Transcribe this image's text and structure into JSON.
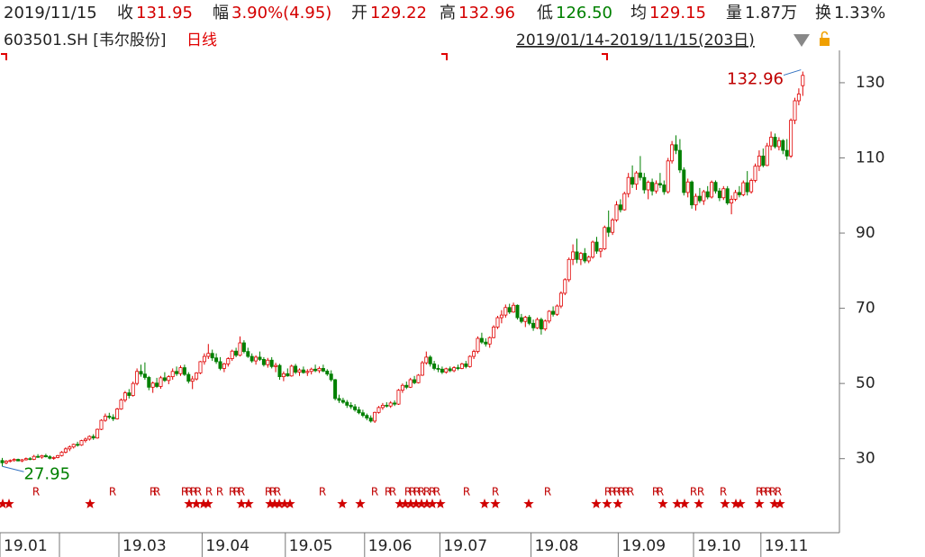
{
  "header": {
    "date": "2019/11/15",
    "items": [
      {
        "label": "收",
        "value": "131.95",
        "color": "#d40000"
      },
      {
        "label": "幅",
        "value": "3.90%(4.95)",
        "color": "#d40000"
      },
      {
        "label": "开",
        "value": "129.22",
        "color": "#d40000"
      },
      {
        "label": "高",
        "value": "132.96",
        "color": "#d40000"
      },
      {
        "label": "低",
        "value": "126.50",
        "color": "#008000"
      },
      {
        "label": "均",
        "value": "129.15",
        "color": "#d40000"
      },
      {
        "label": "量",
        "value": "1.87万",
        "color": "#222222"
      },
      {
        "label": "换",
        "value": "1.33%",
        "color": "#222222"
      }
    ]
  },
  "chart_data": {
    "type": "candlestick",
    "code": "603501.SH [韦尔股份]",
    "period": "日线",
    "range": "2019/01/14-2019/11/15(203日)",
    "up_color": "#e00000",
    "down_color": "#008000",
    "ylim": [
      10.3,
      138.6
    ],
    "yticks": [
      30,
      50,
      70,
      90,
      110,
      130
    ],
    "month_starts": [
      0,
      15,
      30,
      51,
      72,
      92,
      111,
      134,
      156,
      175,
      192
    ],
    "month_labels": [
      "19.01",
      null,
      "19.03",
      "19.04",
      "19.05",
      "19.06",
      "19.07",
      "19.08",
      "19.09",
      "19.10",
      "19.11"
    ],
    "max_label": "132.96",
    "min_label": "27.95",
    "event_label": "R",
    "candles": [
      [
        29.5,
        30.2,
        27.95,
        28.9
      ],
      [
        28.9,
        29.6,
        28.5,
        29.3
      ],
      [
        29.3,
        29.8,
        29.0,
        29.5
      ],
      [
        29.5,
        30.1,
        29.2,
        29.8
      ],
      [
        29.8,
        30.0,
        29.3,
        29.4
      ],
      [
        29.4,
        29.9,
        29.1,
        29.7
      ],
      [
        29.7,
        30.3,
        29.5,
        30.0
      ],
      [
        30.0,
        30.4,
        29.6,
        29.8
      ],
      [
        29.8,
        31.0,
        29.6,
        30.6
      ],
      [
        30.6,
        31.2,
        30.2,
        30.4
      ],
      [
        30.4,
        31.0,
        30.0,
        30.8
      ],
      [
        30.8,
        31.3,
        30.3,
        30.5
      ],
      [
        30.5,
        30.9,
        29.8,
        30.1
      ],
      [
        30.1,
        30.6,
        29.7,
        30.3
      ],
      [
        30.3,
        31.0,
        30.1,
        30.8
      ],
      [
        30.8,
        32.0,
        30.6,
        31.7
      ],
      [
        31.7,
        33.0,
        31.4,
        32.6
      ],
      [
        32.6,
        33.5,
        32.0,
        33.1
      ],
      [
        33.1,
        34.0,
        32.7,
        33.8
      ],
      [
        33.8,
        34.5,
        33.2,
        33.6
      ],
      [
        33.6,
        35.0,
        33.4,
        34.8
      ],
      [
        34.8,
        35.6,
        34.3,
        35.2
      ],
      [
        35.2,
        36.2,
        34.8,
        35.9
      ],
      [
        35.9,
        36.5,
        35.0,
        35.5
      ],
      [
        35.5,
        38.0,
        35.3,
        37.8
      ],
      [
        37.8,
        40.5,
        37.6,
        40.2
      ],
      [
        40.2,
        42.0,
        39.8,
        41.3
      ],
      [
        41.3,
        42.2,
        40.5,
        41.0
      ],
      [
        41.0,
        41.8,
        40.0,
        40.6
      ],
      [
        40.6,
        43.5,
        40.4,
        43.2
      ],
      [
        43.2,
        46.0,
        43.0,
        45.6
      ],
      [
        45.6,
        48.0,
        45.0,
        47.5
      ],
      [
        47.5,
        48.5,
        46.0,
        46.8
      ],
      [
        46.8,
        50.5,
        46.5,
        50.0
      ],
      [
        50.0,
        54.0,
        49.5,
        53.2
      ],
      [
        53.2,
        55.0,
        51.8,
        52.5
      ],
      [
        52.5,
        55.6,
        51.0,
        51.6
      ],
      [
        51.6,
        52.0,
        48.2,
        49.0
      ],
      [
        49.0,
        50.5,
        47.5,
        50.1
      ],
      [
        50.1,
        51.5,
        48.8,
        49.2
      ],
      [
        49.2,
        52.0,
        48.6,
        51.5
      ],
      [
        51.5,
        53.0,
        50.4,
        50.8
      ],
      [
        50.8,
        52.2,
        49.8,
        51.8
      ],
      [
        51.8,
        54.0,
        51.0,
        53.2
      ],
      [
        53.2,
        54.5,
        52.0,
        52.6
      ],
      [
        52.6,
        54.8,
        52.0,
        54.2
      ],
      [
        54.2,
        55.0,
        52.0,
        52.4
      ],
      [
        52.4,
        53.0,
        50.0,
        50.6
      ],
      [
        50.6,
        52.0,
        48.5,
        51.2
      ],
      [
        51.2,
        53.0,
        50.8,
        52.8
      ],
      [
        52.8,
        56.0,
        52.5,
        55.8
      ],
      [
        55.8,
        58.0,
        55.0,
        57.2
      ],
      [
        57.2,
        60.5,
        56.5,
        58.0
      ],
      [
        58.0,
        59.0,
        56.0,
        56.8
      ],
      [
        56.8,
        58.0,
        55.2,
        55.8
      ],
      [
        55.8,
        57.0,
        53.5,
        54.0
      ],
      [
        54.0,
        55.5,
        53.0,
        55.2
      ],
      [
        55.2,
        57.0,
        54.5,
        56.6
      ],
      [
        56.6,
        59.0,
        56.0,
        58.6
      ],
      [
        58.6,
        59.5,
        57.0,
        57.5
      ],
      [
        57.5,
        62.5,
        57.2,
        60.8
      ],
      [
        60.8,
        61.5,
        58.0,
        58.5
      ],
      [
        58.5,
        59.5,
        56.8,
        57.2
      ],
      [
        57.2,
        58.0,
        55.5,
        56.0
      ],
      [
        56.0,
        57.5,
        55.0,
        57.0
      ],
      [
        57.0,
        58.5,
        56.0,
        56.4
      ],
      [
        56.4,
        57.0,
        54.5,
        55.0
      ],
      [
        55.0,
        56.8,
        54.2,
        56.2
      ],
      [
        56.2,
        57.0,
        54.0,
        54.5
      ],
      [
        54.5,
        55.5,
        53.0,
        54.8
      ],
      [
        54.8,
        55.2,
        51.0,
        51.8
      ],
      [
        51.8,
        53.2,
        50.6,
        52.6
      ],
      [
        52.6,
        54.0,
        51.8,
        52.0
      ],
      [
        52.0,
        55.0,
        51.8,
        54.6
      ],
      [
        54.6,
        55.2,
        52.5,
        53.0
      ],
      [
        53.0,
        54.0,
        52.0,
        53.6
      ],
      [
        53.6,
        54.5,
        52.6,
        52.9
      ],
      [
        52.9,
        53.8,
        52.0,
        53.2
      ],
      [
        53.2,
        54.2,
        52.4,
        53.8
      ],
      [
        53.8,
        55.0,
        53.0,
        53.4
      ],
      [
        53.4,
        54.5,
        52.8,
        54.0
      ],
      [
        54.0,
        55.0,
        53.0,
        53.3
      ],
      [
        53.3,
        53.8,
        52.0,
        52.5
      ],
      [
        52.5,
        53.5,
        50.5,
        51.0
      ],
      [
        51.0,
        51.2,
        45.5,
        46.0
      ],
      [
        46.0,
        47.0,
        44.8,
        45.5
      ],
      [
        45.5,
        46.2,
        44.6,
        45.0
      ],
      [
        45.0,
        45.6,
        43.5,
        44.2
      ],
      [
        44.2,
        45.0,
        43.2,
        43.8
      ],
      [
        43.8,
        44.5,
        42.5,
        43.0
      ],
      [
        43.0,
        43.8,
        41.8,
        42.2
      ],
      [
        42.2,
        43.0,
        41.0,
        41.5
      ],
      [
        41.5,
        42.0,
        40.2,
        40.8
      ],
      [
        40.8,
        41.5,
        39.6,
        40.0
      ],
      [
        40.0,
        42.5,
        39.5,
        42.3
      ],
      [
        42.3,
        44.0,
        42.0,
        43.6
      ],
      [
        43.6,
        44.8,
        43.0,
        44.2
      ],
      [
        44.2,
        45.0,
        43.6,
        44.0
      ],
      [
        44.0,
        45.3,
        43.5,
        44.8
      ],
      [
        44.8,
        45.5,
        44.0,
        44.5
      ],
      [
        44.5,
        48.5,
        44.3,
        48.2
      ],
      [
        48.2,
        50.0,
        47.5,
        49.5
      ],
      [
        49.5,
        50.5,
        48.5,
        49.0
      ],
      [
        49.0,
        51.5,
        48.8,
        51.0
      ],
      [
        51.0,
        52.0,
        49.8,
        50.2
      ],
      [
        50.2,
        52.5,
        50.0,
        52.2
      ],
      [
        52.2,
        56.0,
        52.0,
        55.5
      ],
      [
        55.5,
        58.5,
        55.0,
        57.0
      ],
      [
        57.0,
        57.5,
        54.5,
        55.2
      ],
      [
        55.2,
        56.0,
        53.5,
        54.0
      ],
      [
        54.0,
        55.0,
        53.0,
        53.8
      ],
      [
        53.8,
        54.5,
        52.5,
        53.0
      ],
      [
        53.0,
        54.2,
        52.6,
        53.9
      ],
      [
        53.9,
        54.5,
        53.0,
        53.4
      ],
      [
        53.4,
        54.6,
        53.0,
        54.2
      ],
      [
        54.2,
        55.0,
        53.5,
        54.0
      ],
      [
        54.0,
        55.5,
        53.8,
        55.2
      ],
      [
        55.2,
        56.0,
        54.0,
        54.5
      ],
      [
        54.5,
        57.5,
        54.2,
        57.2
      ],
      [
        57.2,
        59.0,
        56.5,
        58.5
      ],
      [
        58.5,
        62.5,
        58.0,
        62.0
      ],
      [
        62.0,
        63.5,
        60.5,
        61.0
      ],
      [
        61.0,
        62.0,
        59.8,
        60.5
      ],
      [
        60.5,
        62.5,
        59.5,
        62.2
      ],
      [
        62.2,
        65.5,
        62.0,
        65.0
      ],
      [
        65.0,
        68.0,
        64.5,
        67.5
      ],
      [
        67.5,
        69.5,
        66.0,
        68.2
      ],
      [
        68.2,
        71.0,
        67.5,
        70.2
      ],
      [
        70.2,
        71.2,
        68.5,
        69.0
      ],
      [
        69.0,
        71.5,
        68.8,
        70.8
      ],
      [
        70.8,
        71.0,
        67.0,
        67.5
      ],
      [
        67.5,
        68.5,
        66.0,
        66.5
      ],
      [
        66.5,
        68.0,
        65.0,
        67.6
      ],
      [
        67.6,
        68.2,
        65.5,
        66.0
      ],
      [
        66.0,
        67.0,
        64.0,
        64.8
      ],
      [
        64.8,
        67.5,
        64.5,
        67.0
      ],
      [
        67.0,
        67.5,
        63.0,
        64.5
      ],
      [
        64.5,
        67.0,
        64.0,
        66.6
      ],
      [
        66.6,
        69.5,
        66.0,
        69.2
      ],
      [
        69.2,
        70.5,
        67.8,
        68.4
      ],
      [
        68.4,
        71.0,
        68.0,
        70.6
      ],
      [
        70.6,
        74.5,
        70.0,
        74.0
      ],
      [
        74.0,
        78.0,
        73.5,
        77.6
      ],
      [
        77.6,
        83.5,
        77.0,
        83.0
      ],
      [
        83.0,
        87.0,
        81.5,
        85.0
      ],
      [
        85.0,
        88.5,
        82.0,
        83.0
      ],
      [
        83.0,
        85.0,
        81.5,
        84.6
      ],
      [
        84.6,
        86.0,
        82.0,
        82.6
      ],
      [
        82.6,
        84.0,
        82.0,
        83.6
      ],
      [
        83.6,
        88.0,
        83.2,
        87.6
      ],
      [
        87.6,
        89.0,
        84.5,
        85.2
      ],
      [
        85.2,
        86.0,
        83.5,
        85.8
      ],
      [
        85.8,
        92.0,
        85.5,
        91.5
      ],
      [
        91.5,
        96.0,
        89.0,
        90.2
      ],
      [
        90.2,
        94.0,
        89.5,
        93.5
      ],
      [
        93.5,
        98.5,
        93.0,
        97.5
      ],
      [
        97.5,
        99.0,
        95.5,
        96.2
      ],
      [
        96.2,
        101.0,
        96.0,
        100.5
      ],
      [
        100.5,
        106.0,
        99.5,
        104.8
      ],
      [
        104.8,
        108.0,
        102.0,
        103.0
      ],
      [
        103.0,
        106.5,
        101.5,
        106.0
      ],
      [
        106.0,
        110.5,
        104.0,
        104.8
      ],
      [
        104.8,
        106.0,
        100.5,
        101.5
      ],
      [
        101.5,
        104.0,
        99.0,
        103.5
      ],
      [
        103.5,
        104.5,
        100.0,
        101.2
      ],
      [
        101.2,
        104.0,
        100.5,
        103.2
      ],
      [
        103.2,
        106.0,
        102.0,
        102.8
      ],
      [
        102.8,
        104.0,
        100.2,
        101.0
      ],
      [
        101.0,
        110.0,
        100.5,
        109.2
      ],
      [
        109.2,
        114.5,
        108.5,
        113.5
      ],
      [
        113.5,
        116.0,
        111.0,
        112.0
      ],
      [
        112.0,
        115.0,
        106.0,
        106.8
      ],
      [
        106.8,
        107.5,
        100.0,
        100.8
      ],
      [
        100.8,
        104.5,
        99.5,
        103.6
      ],
      [
        103.6,
        104.0,
        96.5,
        97.5
      ],
      [
        97.5,
        100.5,
        96.0,
        99.8
      ],
      [
        99.8,
        102.0,
        98.0,
        98.6
      ],
      [
        98.6,
        101.5,
        97.5,
        101.0
      ],
      [
        101.0,
        102.5,
        99.0,
        99.6
      ],
      [
        99.6,
        104.0,
        99.2,
        103.5
      ],
      [
        103.5,
        104.0,
        100.5,
        101.2
      ],
      [
        101.2,
        102.0,
        98.5,
        99.4
      ],
      [
        99.4,
        102.5,
        98.8,
        101.8
      ],
      [
        101.8,
        102.5,
        97.5,
        98.0
      ],
      [
        98.0,
        100.0,
        95.0,
        99.0
      ],
      [
        99.0,
        101.5,
        98.5,
        100.8
      ],
      [
        100.8,
        102.5,
        99.5,
        100.2
      ],
      [
        100.2,
        104.0,
        99.8,
        103.4
      ],
      [
        103.4,
        106.5,
        100.0,
        101.0
      ],
      [
        101.0,
        104.5,
        100.5,
        104.0
      ],
      [
        104.0,
        108.5,
        103.5,
        107.8
      ],
      [
        107.8,
        112.0,
        106.5,
        110.5
      ],
      [
        110.5,
        112.5,
        107.5,
        108.0
      ],
      [
        108.0,
        114.0,
        107.8,
        113.2
      ],
      [
        113.2,
        117.0,
        112.0,
        115.5
      ],
      [
        115.5,
        116.5,
        112.5,
        113.0
      ],
      [
        113.0,
        115.5,
        112.0,
        114.6
      ],
      [
        114.6,
        115.0,
        111.0,
        112.0
      ],
      [
        112.0,
        115.0,
        109.5,
        110.5
      ],
      [
        110.5,
        120.5,
        110.0,
        120.0
      ],
      [
        120.0,
        126.0,
        119.0,
        125.2
      ],
      [
        125.2,
        128.5,
        124.0,
        127.0
      ],
      [
        129.22,
        132.96,
        126.5,
        131.95
      ]
    ]
  }
}
